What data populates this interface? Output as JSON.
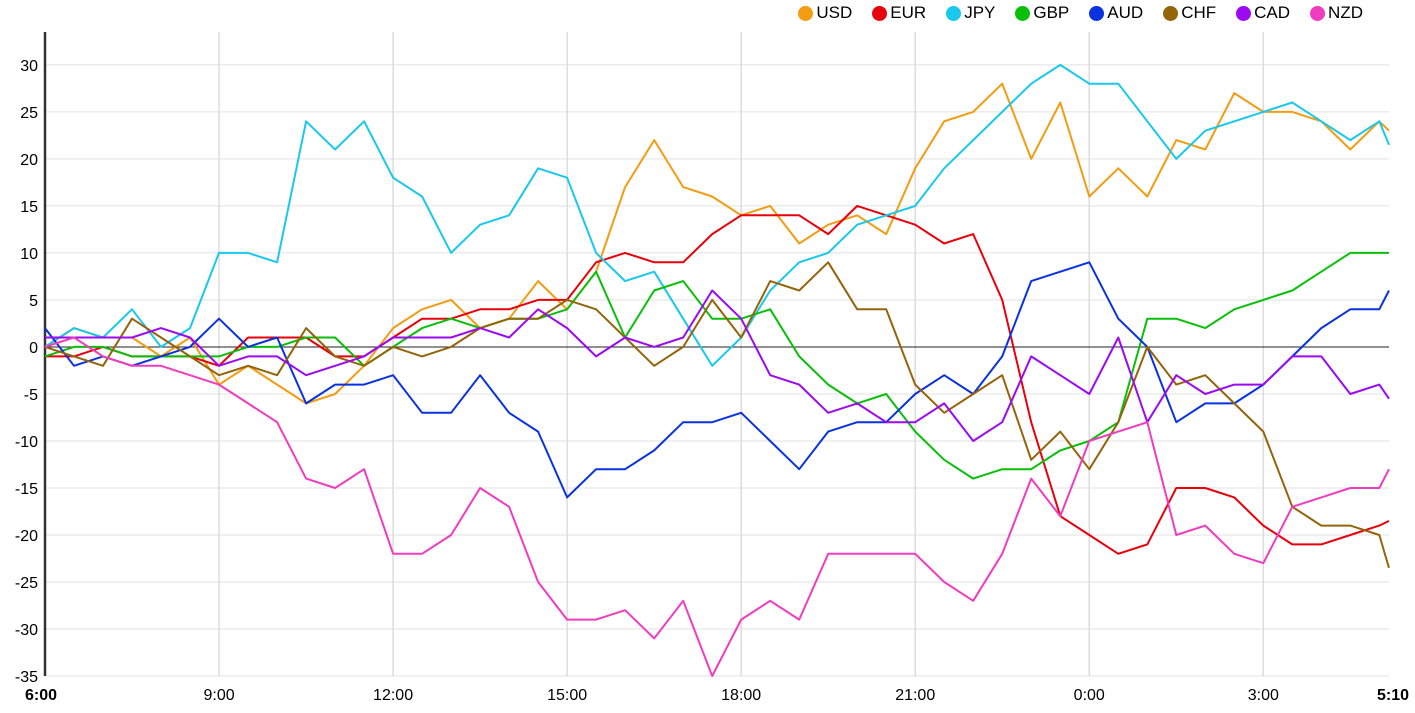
{
  "chart_data": {
    "type": "line",
    "title": "",
    "xlabel": "",
    "ylabel": "",
    "ylim": [
      -35,
      33.5
    ],
    "yticks": [
      -35,
      -30,
      -25,
      -20,
      -15,
      -10,
      -5,
      0,
      5,
      10,
      15,
      20,
      25,
      30
    ],
    "xlim_hours": [
      0,
      23.1667
    ],
    "xticks": [
      {
        "h": 0,
        "label": "6:00",
        "bold": true
      },
      {
        "h": 3,
        "label": "9:00"
      },
      {
        "h": 6,
        "label": "12:00"
      },
      {
        "h": 9,
        "label": "15:00"
      },
      {
        "h": 12,
        "label": "18:00"
      },
      {
        "h": 15,
        "label": "21:00"
      },
      {
        "h": 18,
        "label": "0:00"
      },
      {
        "h": 21,
        "label": "3:00"
      },
      {
        "h": 23.1667,
        "label": "5:10",
        "bold": true
      }
    ],
    "grid": true,
    "legend_position": "top-right",
    "x_hours": [
      0,
      0.5,
      1,
      1.5,
      2,
      2.5,
      3,
      3.5,
      4,
      4.5,
      5,
      5.5,
      6,
      6.5,
      7,
      7.5,
      8,
      8.5,
      9,
      9.5,
      10,
      10.5,
      11,
      11.5,
      12,
      12.5,
      13,
      13.5,
      14,
      14.5,
      15,
      15.5,
      16,
      16.5,
      17,
      17.5,
      18,
      18.5,
      19,
      19.5,
      20,
      20.5,
      21,
      21.5,
      22,
      22.5,
      23,
      23.1667
    ],
    "series": [
      {
        "name": "USD",
        "color": "#f39c12",
        "values": [
          0,
          2,
          1,
          1,
          -1,
          1,
          -4,
          -2,
          -4,
          -6,
          -5,
          -2,
          2,
          4,
          5,
          2,
          3,
          7,
          4,
          8,
          17,
          22,
          17,
          16,
          14,
          15,
          11,
          13,
          14,
          12,
          19,
          24,
          25,
          28,
          20,
          26,
          16,
          19,
          16,
          22,
          21,
          27,
          25,
          25,
          24,
          21,
          24,
          23
        ]
      },
      {
        "name": "EUR",
        "color": "#e8000b",
        "values": [
          -1,
          -1,
          0,
          -1,
          -1,
          -1,
          -2,
          1,
          1,
          1,
          -1,
          -1,
          1,
          3,
          3,
          4,
          4,
          5,
          5,
          9,
          10,
          9,
          9,
          12,
          14,
          14,
          14,
          12,
          15,
          14,
          13,
          11,
          12,
          5,
          -8,
          -18,
          -20,
          -22,
          -21,
          -15,
          -15,
          -16,
          -19,
          -21,
          -21,
          -20,
          -19,
          -18.5
        ]
      },
      {
        "name": "JPY",
        "color": "#1ac8ed",
        "values": [
          0,
          2,
          1,
          4,
          0,
          2,
          10,
          10,
          9,
          24,
          21,
          24,
          18,
          16,
          10,
          13,
          14,
          19,
          18,
          10,
          7,
          8,
          3,
          -2,
          1,
          6,
          9,
          10,
          13,
          14,
          15,
          19,
          22,
          25,
          28,
          30,
          28,
          28,
          24,
          20,
          23,
          24,
          25,
          26,
          24,
          22,
          24,
          21.5
        ]
      },
      {
        "name": "GBP",
        "color": "#0abf0a",
        "values": [
          -1,
          0,
          0,
          -1,
          -1,
          -1,
          -1,
          0,
          0,
          1,
          1,
          -2,
          0,
          2,
          3,
          2,
          3,
          3,
          4,
          8,
          1,
          6,
          7,
          3,
          3,
          4,
          -1,
          -4,
          -6,
          -5,
          -9,
          -12,
          -14,
          -13,
          -13,
          -11,
          -10,
          -8,
          3,
          3,
          2,
          4,
          5,
          6,
          8,
          10,
          10,
          10
        ]
      },
      {
        "name": "AUD",
        "color": "#0a32e0",
        "values": [
          2,
          -2,
          -1,
          -2,
          -1,
          0,
          3,
          0,
          1,
          -6,
          -4,
          -4,
          -3,
          -7,
          -7,
          -3,
          -7,
          -9,
          -16,
          -13,
          -13,
          -11,
          -8,
          -8,
          -7,
          -10,
          -13,
          -9,
          -8,
          -8,
          -5,
          -3,
          -5,
          -1,
          7,
          8,
          9,
          3,
          0,
          -8,
          -6,
          -6,
          -4,
          -1,
          2,
          4,
          4,
          6
        ]
      },
      {
        "name": "CHF",
        "color": "#94640a",
        "values": [
          0,
          -1,
          -2,
          3,
          1,
          -1,
          -3,
          -2,
          -3,
          2,
          -1,
          -2,
          0,
          -1,
          0,
          2,
          3,
          3,
          5,
          4,
          1,
          -2,
          0,
          5,
          1,
          7,
          6,
          9,
          4,
          4,
          -4,
          -7,
          -5,
          -3,
          -12,
          -9,
          -13,
          -8,
          0,
          -4,
          -3,
          -6,
          -9,
          -17,
          -19,
          -19,
          -20,
          -23.5
        ]
      },
      {
        "name": "CAD",
        "color": "#9b0af0",
        "values": [
          1,
          1,
          1,
          1,
          2,
          1,
          -2,
          -1,
          -1,
          -3,
          -2,
          -1,
          1,
          1,
          1,
          2,
          1,
          4,
          2,
          -1,
          1,
          0,
          1,
          6,
          3,
          -3,
          -4,
          -7,
          -6,
          -8,
          -8,
          -6,
          -10,
          -8,
          -1,
          -3,
          -5,
          1,
          -8,
          -3,
          -5,
          -4,
          -4,
          -1,
          -1,
          -5,
          -4,
          -5.5
        ]
      },
      {
        "name": "NZD",
        "color": "#f03cbe",
        "values": [
          0,
          1,
          -1,
          -2,
          -2,
          -3,
          -4,
          -6,
          -8,
          -14,
          -15,
          -13,
          -22,
          -22,
          -20,
          -15,
          -17,
          -25,
          -29,
          -29,
          -28,
          -31,
          -27,
          -35,
          -29,
          -27,
          -29,
          -22,
          -22,
          -22,
          -22,
          -25,
          -27,
          -22,
          -14,
          -18,
          -10,
          -9,
          -8,
          -20,
          -19,
          -22,
          -23,
          -17,
          -16,
          -15,
          -15,
          -13
        ]
      }
    ]
  }
}
